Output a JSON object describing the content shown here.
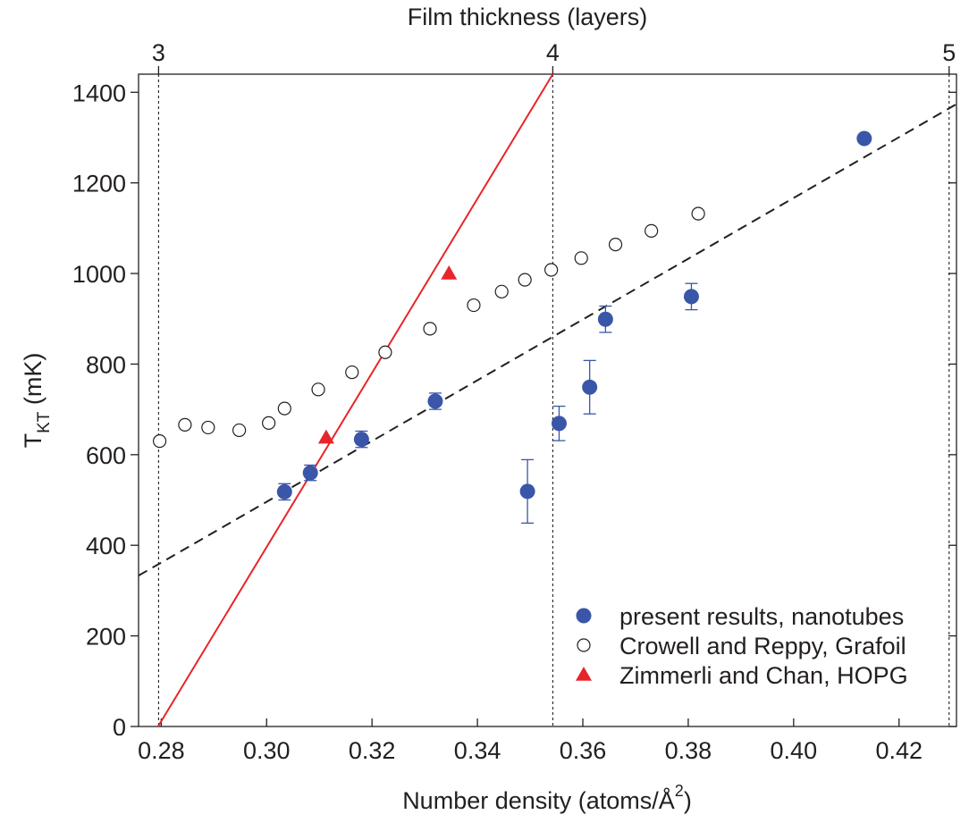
{
  "chart_data": {
    "type": "scatter",
    "title": "",
    "top_axis": {
      "label": "Film thickness (layers)",
      "ticks": [
        {
          "label": "3",
          "density": 0.2795
        },
        {
          "label": "4",
          "density": 0.3543
        },
        {
          "label": "5",
          "density": 0.4295
        }
      ]
    },
    "xlabel_prefix": "Number density (atoms/Å",
    "xlabel_sup": "2",
    "xlabel_suffix": ")",
    "ylabel_main": "T",
    "ylabel_sub": "KT",
    "ylabel_unit": " (mK)",
    "xlim": [
      0.2757,
      0.4309
    ],
    "ylim": [
      0,
      1440
    ],
    "xticks": [
      0.28,
      0.3,
      0.32,
      0.34,
      0.36,
      0.38,
      0.4,
      0.42
    ],
    "xtick_labels": [
      "0.28",
      "0.30",
      "0.32",
      "0.34",
      "0.36",
      "0.38",
      "0.40",
      "0.42"
    ],
    "yticks": [
      0,
      200,
      400,
      600,
      800,
      1000,
      1200,
      1400
    ],
    "ytick_labels": [
      "0",
      "200",
      "400",
      "600",
      "800",
      "1000",
      "1200",
      "1400"
    ],
    "legend_position": "bottom-right",
    "series": [
      {
        "name": "present results, nanotubes",
        "marker": "filled-circle",
        "color": "#3a56a8",
        "points": [
          {
            "x": 0.3034,
            "y": 518,
            "err": 18
          },
          {
            "x": 0.3083,
            "y": 560,
            "err": 17
          },
          {
            "x": 0.318,
            "y": 634,
            "err": 18
          },
          {
            "x": 0.332,
            "y": 718,
            "err": 18
          },
          {
            "x": 0.3495,
            "y": 519,
            "err": 70
          },
          {
            "x": 0.3555,
            "y": 669,
            "err": 38
          },
          {
            "x": 0.3613,
            "y": 749,
            "err": 59
          },
          {
            "x": 0.3643,
            "y": 899,
            "err": 29
          },
          {
            "x": 0.3806,
            "y": 949,
            "err": 29
          },
          {
            "x": 0.4134,
            "y": 1298,
            "err": 0
          }
        ]
      },
      {
        "name": "Crowell and Reppy, Grafoil",
        "marker": "open-circle",
        "color": "#231f20",
        "points": [
          {
            "x": 0.2797,
            "y": 630
          },
          {
            "x": 0.2845,
            "y": 666
          },
          {
            "x": 0.2889,
            "y": 660
          },
          {
            "x": 0.2948,
            "y": 654
          },
          {
            "x": 0.3004,
            "y": 670
          },
          {
            "x": 0.3034,
            "y": 702
          },
          {
            "x": 0.3098,
            "y": 744
          },
          {
            "x": 0.3162,
            "y": 782
          },
          {
            "x": 0.3225,
            "y": 826
          },
          {
            "x": 0.331,
            "y": 878
          },
          {
            "x": 0.3393,
            "y": 930
          },
          {
            "x": 0.3446,
            "y": 960
          },
          {
            "x": 0.349,
            "y": 986
          },
          {
            "x": 0.354,
            "y": 1008
          },
          {
            "x": 0.3597,
            "y": 1034
          },
          {
            "x": 0.3662,
            "y": 1064
          },
          {
            "x": 0.373,
            "y": 1094
          },
          {
            "x": 0.3819,
            "y": 1132
          }
        ]
      },
      {
        "name": "Zimmerli and Chan, HOPG",
        "marker": "filled-triangle",
        "color": "#e8252a",
        "points": [
          {
            "x": 0.3113,
            "y": 638
          },
          {
            "x": 0.3346,
            "y": 1000
          }
        ]
      }
    ],
    "fit_lines": [
      {
        "style": "solid",
        "color": "#e8252a",
        "x": [
          0.2794,
          0.3543
        ],
        "y": [
          0,
          1440
        ]
      },
      {
        "style": "dashed",
        "color": "#231f20",
        "x": [
          0.2757,
          0.4309
        ],
        "y": [
          333,
          1374
        ]
      }
    ]
  }
}
